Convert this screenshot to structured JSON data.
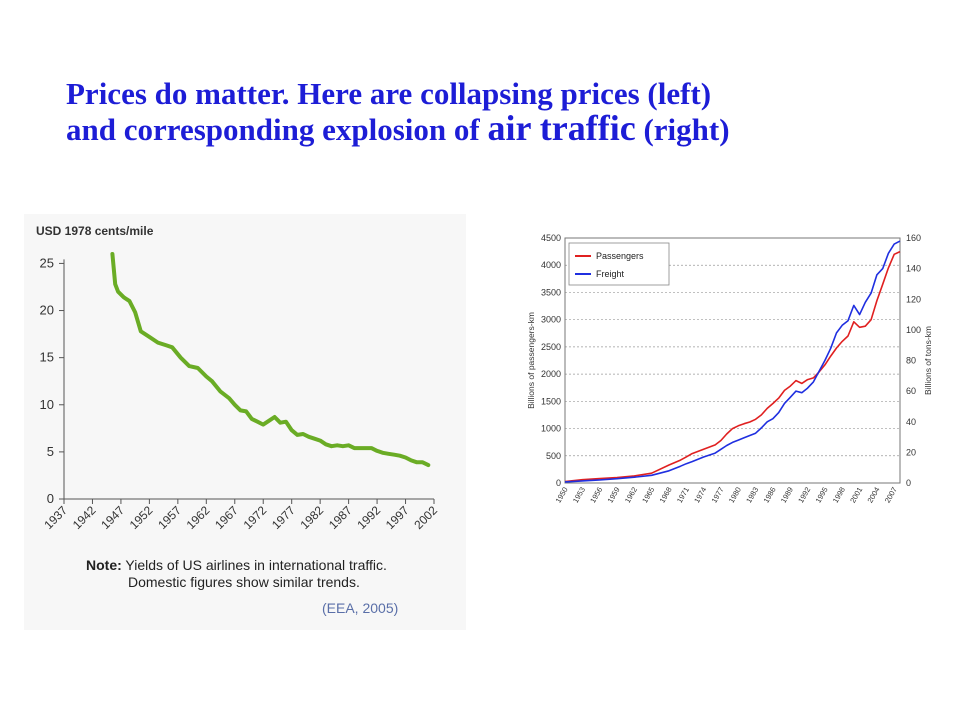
{
  "title": {
    "line1": "Prices do matter. Here are collapsing prices (left)",
    "line2_pre": "and corresponding explosion of",
    "line2_emph": "air traffic",
    "line2_post": "(right)"
  },
  "chart_data": [
    {
      "type": "line",
      "units_label": "USD 1978 cents/mile",
      "x_ticks": [
        "1937",
        "1942",
        "1947",
        "1952",
        "1957",
        "1962",
        "1967",
        "1972",
        "1977",
        "1982",
        "1987",
        "1992",
        "1997",
        "2002"
      ],
      "y_ticks": [
        "0",
        "5",
        "10",
        "15",
        "20",
        "25"
      ],
      "xlim": [
        1937,
        2002
      ],
      "ylim": [
        0,
        26
      ],
      "color": "#6aac25",
      "series": [
        {
          "x": [
            1945.5,
            1946,
            1946.5,
            1947.5,
            1948.5,
            1949.5,
            1950.5,
            1952,
            1953.5,
            1955,
            1956,
            1957.5,
            1959,
            1960.5,
            1962,
            1963,
            1964.5,
            1966,
            1967,
            1968,
            1969,
            1970,
            1971,
            1972,
            1973,
            1974,
            1975,
            1976,
            1977,
            1978,
            1979,
            1980,
            1981,
            1982,
            1983,
            1984,
            1985,
            1986,
            1987,
            1988,
            1989,
            1990,
            1991,
            1992,
            1993,
            1994,
            1995,
            1996,
            1997,
            1998,
            1999,
            2000,
            2001
          ],
          "y": [
            26,
            22.8,
            22,
            21.4,
            21,
            19.8,
            17.8,
            17.2,
            16.6,
            16.3,
            16.1,
            15,
            14.1,
            13.9,
            13,
            12.5,
            11.4,
            10.7,
            10,
            9.4,
            9.3,
            8.5,
            8.2,
            7.9,
            8.3,
            8.7,
            8.1,
            8.2,
            7.3,
            6.8,
            6.9,
            6.6,
            6.4,
            6.2,
            5.8,
            5.6,
            5.7,
            5.6,
            5.7,
            5.4,
            5.4,
            5.4,
            5.4,
            5.1,
            4.9,
            4.8,
            4.7,
            4.6,
            4.4,
            4.1,
            3.9,
            3.9,
            3.6
          ]
        }
      ],
      "note_label": "Note:",
      "note_line1": "Yields of US airlines in international traffic.",
      "note_line2": "Domestic figures show similar trends.",
      "source": "(EEA, 2005)"
    },
    {
      "type": "line",
      "ylabel": "Billions of passengers-km",
      "y2label": "Billions of tons-km",
      "y_ticks": [
        "0",
        "500",
        "1000",
        "1500",
        "2000",
        "2500",
        "3000",
        "3500",
        "4000",
        "4500"
      ],
      "y2_ticks": [
        "0",
        "20",
        "40",
        "60",
        "80",
        "100",
        "120",
        "140",
        "160"
      ],
      "x_ticks": [
        "1950",
        "1953",
        "1956",
        "1959",
        "1962",
        "1965",
        "1968",
        "1971",
        "1974",
        "1977",
        "1980",
        "1983",
        "1986",
        "1989",
        "1992",
        "1995",
        "1998",
        "2001",
        "2004",
        "2007"
      ],
      "xlim": [
        1950,
        2008
      ],
      "ylim": [
        0,
        4500
      ],
      "y2lim": [
        0,
        160
      ],
      "grid": true,
      "legend_position": "top-left",
      "series": [
        {
          "name": "Passengers",
          "axis": "left",
          "color": "#e02020",
          "x": [
            1950,
            1953,
            1956,
            1959,
            1962,
            1965,
            1968,
            1970,
            1971,
            1972,
            1974,
            1976,
            1977,
            1978,
            1979,
            1980,
            1981,
            1982,
            1983,
            1984,
            1985,
            1986,
            1987,
            1988,
            1989,
            1990,
            1991,
            1992,
            1993,
            1994,
            1995,
            1996,
            1997,
            1998,
            1999,
            2000,
            2001,
            2002,
            2003,
            2004,
            2005,
            2006,
            2007,
            2008
          ],
          "y": [
            28,
            60,
            80,
            100,
            130,
            180,
            330,
            420,
            480,
            540,
            620,
            700,
            780,
            900,
            1000,
            1050,
            1090,
            1120,
            1170,
            1250,
            1370,
            1460,
            1560,
            1700,
            1780,
            1880,
            1830,
            1900,
            1930,
            2040,
            2170,
            2330,
            2480,
            2600,
            2700,
            2960,
            2860,
            2880,
            3000,
            3350,
            3650,
            3950,
            4200,
            4250
          ]
        },
        {
          "name": "Freight",
          "axis": "right",
          "color": "#1f2fe0",
          "x": [
            1950,
            1953,
            1956,
            1959,
            1962,
            1965,
            1968,
            1970,
            1971,
            1972,
            1974,
            1976,
            1977,
            1978,
            1979,
            1980,
            1981,
            1982,
            1983,
            1984,
            1985,
            1986,
            1987,
            1988,
            1989,
            1990,
            1991,
            1992,
            1993,
            1994,
            1995,
            1996,
            1997,
            1998,
            1999,
            2000,
            2001,
            2002,
            2003,
            2004,
            2005,
            2006,
            2007,
            2008
          ],
          "y": [
            0.7,
            1.4,
            2,
            2.8,
            3.8,
            5,
            8,
            11,
            12.6,
            14,
            17,
            19.5,
            22,
            24.5,
            26.5,
            28,
            29.5,
            31,
            32.5,
            36,
            40,
            42,
            46,
            52,
            56,
            60,
            59,
            62,
            66,
            73,
            80,
            88,
            98,
            103,
            106,
            116,
            110,
            118,
            124,
            136,
            140,
            150,
            156,
            158
          ]
        }
      ]
    }
  ]
}
